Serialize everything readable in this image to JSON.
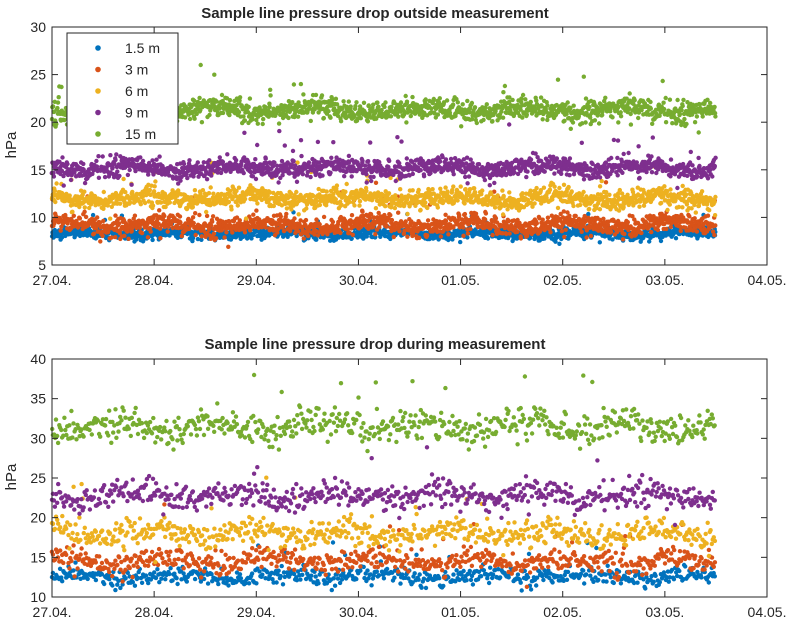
{
  "chart_data": [
    {
      "type": "scatter",
      "title": "Sample line pressure drop outside measurement",
      "xlabel": "",
      "ylabel": "hPa",
      "ylim": [
        5,
        30
      ],
      "yticks": [
        "5",
        "10",
        "15",
        "20",
        "25",
        "30"
      ],
      "x_tick_labels": [
        "27.04.",
        "28.04.",
        "29.04.",
        "30.04.",
        "01.05.",
        "02.05.",
        "03.05.",
        "04.05."
      ],
      "grid": false,
      "legend_position": "top-left",
      "series": [
        {
          "name": "1.5 m",
          "color": "#0072BD",
          "typical_value": 8.3,
          "spread": 0.5,
          "start_day": 0,
          "end_day": 6.5,
          "count": 1400
        },
        {
          "name": "3 m",
          "color": "#D95319",
          "typical_value": 9.2,
          "spread": 0.9,
          "start_day": 0,
          "end_day": 6.5,
          "count": 1400
        },
        {
          "name": "6 m",
          "color": "#EDB120",
          "typical_value": 12.0,
          "spread": 0.9,
          "start_day": 0,
          "end_day": 6.5,
          "count": 1400
        },
        {
          "name": "9 m",
          "color": "#7E2F8E",
          "typical_value": 15.2,
          "spread": 0.9,
          "start_day": 0,
          "end_day": 6.5,
          "count": 1400
        },
        {
          "name": "15 m",
          "color": "#77AC30",
          "typical_value": 21.3,
          "spread": 1.0,
          "start_day": 0,
          "end_day": 6.5,
          "count": 1400
        }
      ]
    },
    {
      "type": "scatter",
      "title": "Sample line pressure drop during measurement",
      "xlabel": "",
      "ylabel": "hPa",
      "ylim": [
        10,
        40
      ],
      "yticks": [
        "10",
        "15",
        "20",
        "25",
        "30",
        "35",
        "40"
      ],
      "x_tick_labels": [
        "27.04.",
        "28.04.",
        "29.04.",
        "30.04.",
        "01.05.",
        "02.05.",
        "03.05.",
        "04.05."
      ],
      "grid": false,
      "series": [
        {
          "name": "1.5 m",
          "color": "#0072BD",
          "typical_value": 12.6,
          "spread": 1.0,
          "start_day": 0,
          "end_day": 6.5,
          "count": 650
        },
        {
          "name": "3 m",
          "color": "#D95319",
          "typical_value": 14.5,
          "spread": 1.3,
          "start_day": 0,
          "end_day": 6.5,
          "count": 650
        },
        {
          "name": "6 m",
          "color": "#EDB120",
          "typical_value": 18.0,
          "spread": 1.5,
          "start_day": 0,
          "end_day": 6.5,
          "count": 650
        },
        {
          "name": "9 m",
          "color": "#7E2F8E",
          "typical_value": 22.8,
          "spread": 1.5,
          "start_day": 0,
          "end_day": 6.5,
          "count": 650
        },
        {
          "name": "15 m",
          "color": "#77AC30",
          "typical_value": 31.5,
          "spread": 1.8,
          "start_day": 0,
          "end_day": 6.5,
          "count": 650
        }
      ]
    }
  ]
}
